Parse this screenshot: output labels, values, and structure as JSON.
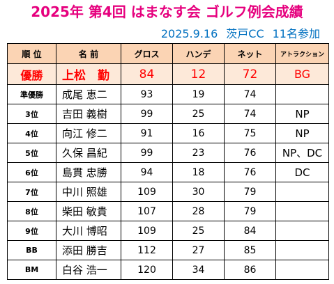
{
  "title": "2025年 第4回 はまなす会 ゴルフ例会成績",
  "subtitle": {
    "date": "2025.9.16",
    "course": "茨戸CC",
    "participants": "11名参加"
  },
  "table": {
    "headers": [
      "順 位",
      "名 前",
      "グロス",
      "ハンデ",
      "ネット",
      "アトラクション"
    ],
    "rows": [
      {
        "rank": "優勝",
        "name": "上松　勤",
        "gross": "84",
        "handicap": "12",
        "net": "72",
        "attraction": "BG"
      },
      {
        "rank": "準優勝",
        "name": "成尾 恵二",
        "gross": "93",
        "handicap": "19",
        "net": "74",
        "attraction": ""
      },
      {
        "rank": "3位",
        "name": "吉田 義樹",
        "gross": "99",
        "handicap": "25",
        "net": "74",
        "attraction": "NP"
      },
      {
        "rank": "4位",
        "name": "向江 修二",
        "gross": "91",
        "handicap": "16",
        "net": "75",
        "attraction": "NP"
      },
      {
        "rank": "5位",
        "name": "久保 昌紀",
        "gross": "99",
        "handicap": "23",
        "net": "76",
        "attraction": "NP、DC"
      },
      {
        "rank": "6位",
        "name": "島貫 忠勝",
        "gross": "94",
        "handicap": "18",
        "net": "76",
        "attraction": "DC"
      },
      {
        "rank": "7位",
        "name": "中川 照雄",
        "gross": "109",
        "handicap": "30",
        "net": "79",
        "attraction": ""
      },
      {
        "rank": "8位",
        "name": "柴田 敏貴",
        "gross": "107",
        "handicap": "28",
        "net": "79",
        "attraction": ""
      },
      {
        "rank": "9位",
        "name": "大川 博昭",
        "gross": "109",
        "handicap": "25",
        "net": "84",
        "attraction": ""
      },
      {
        "rank": "BB",
        "name": "添田 勝吉",
        "gross": "112",
        "handicap": "27",
        "net": "85",
        "attraction": ""
      },
      {
        "rank": "BM",
        "name": "白谷 浩一",
        "gross": "120",
        "handicap": "34",
        "net": "86",
        "attraction": ""
      }
    ]
  },
  "colors": {
    "title": "#e6007e",
    "subtitle": "#0070c0",
    "header_bg": "#fbd4b4",
    "winner_bg": "#fde9d9",
    "winner_text": "#ff0000"
  }
}
